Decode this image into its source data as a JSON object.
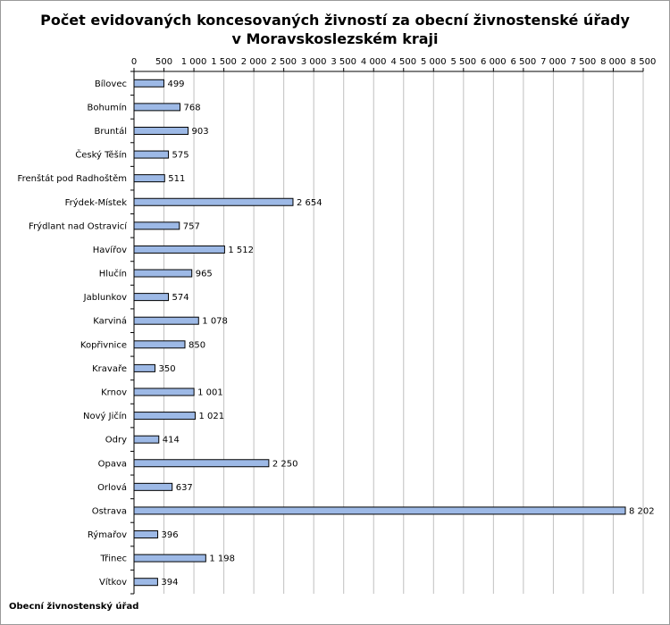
{
  "chart_data": {
    "type": "bar",
    "orientation": "horizontal",
    "title_lines": [
      "Počet evidovaných koncesovaných živností za obecní živnostenské úřady",
      "v Moravskoslezském kraji"
    ],
    "ylabel": "Obecní živnostenský úřad",
    "xlabel": "",
    "xlim": [
      0,
      8500
    ],
    "x_ticks": [
      0,
      500,
      1000,
      1500,
      2000,
      2500,
      3000,
      3500,
      4000,
      4500,
      5000,
      5500,
      6000,
      6500,
      7000,
      7500,
      8000,
      8500
    ],
    "x_tick_labels": [
      "0",
      "500",
      "1 000",
      "1 500",
      "2 000",
      "2 500",
      "3 000",
      "3 500",
      "4 000",
      "4 500",
      "5 000",
      "5 500",
      "6 000",
      "6 500",
      "7 000",
      "7 500",
      "8 000",
      "8 500"
    ],
    "grid": true,
    "categories": [
      "Bílovec",
      "Bohumín",
      "Bruntál",
      "Český Těšín",
      "Frenštát pod Radhoštěm",
      "Frýdek-Místek",
      "Frýdlant nad Ostravicí",
      "Havířov",
      "Hlučín",
      "Jablunkov",
      "Karviná",
      "Kopřivnice",
      "Kravaře",
      "Krnov",
      "Nový Jičín",
      "Odry",
      "Opava",
      "Orlová",
      "Ostrava",
      "Rýmařov",
      "Třinec",
      "Vítkov"
    ],
    "values": [
      499,
      768,
      903,
      575,
      511,
      2654,
      757,
      1512,
      965,
      574,
      1078,
      850,
      350,
      1001,
      1021,
      414,
      2250,
      637,
      8202,
      396,
      1198,
      394
    ],
    "value_labels": [
      "499",
      "768",
      "903",
      "575",
      "511",
      "2 654",
      "757",
      "1 512",
      "965",
      "574",
      "1 078",
      "850",
      "350",
      "1 001",
      "1 021",
      "414",
      "2 250",
      "637",
      "8 202",
      "396",
      "1 198",
      "394"
    ],
    "colors": {
      "bar_fill": "#9db9e6",
      "bar_stroke": "#000000",
      "grid": "#c0c0c0",
      "axis": "#000000"
    }
  }
}
